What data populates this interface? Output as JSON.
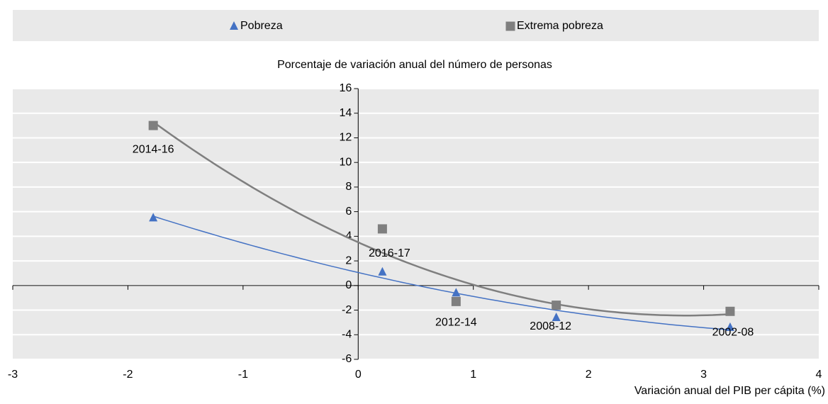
{
  "chart_data": {
    "type": "scatter",
    "y_label": "Porcentaje de variación anual del  número de personas",
    "x_label": "Variación anual del PIB per cápita (%)",
    "x": [
      -1.78,
      0.21,
      0.85,
      1.72,
      3.23
    ],
    "point_labels": [
      "2014-16",
      "2016-17",
      "2012-14",
      "2008-12",
      "2002-08"
    ],
    "series": [
      {
        "name": "Pobreza",
        "color": "#4472c4",
        "marker": "triangle",
        "values": [
          5.5,
          1.1,
          -0.6,
          -2.6,
          -3.4
        ]
      },
      {
        "name": "Extrema pobreza",
        "color": "#7f7f7f",
        "marker": "square",
        "values": [
          13,
          4.6,
          -1.3,
          -1.6,
          -2.1
        ]
      }
    ],
    "trendline": "poly2",
    "xlim": [
      -3,
      4
    ],
    "xticks": [
      -3,
      -2,
      -1,
      0,
      1,
      2,
      3,
      4
    ],
    "ylim": [
      -6,
      16
    ],
    "yticks": [
      -6,
      -4,
      -2,
      0,
      2,
      4,
      6,
      8,
      10,
      12,
      14,
      16
    ],
    "grid": true,
    "legend": "top"
  }
}
